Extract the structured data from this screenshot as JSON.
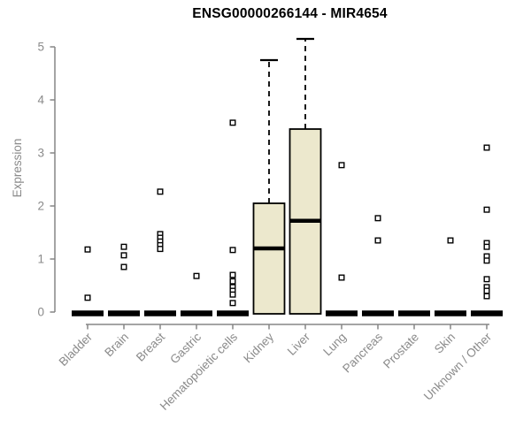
{
  "chart_data": {
    "type": "boxplot",
    "title": "ENSG00000266144 - MIR4654",
    "ylabel": "Expression",
    "xlabel": "",
    "ylim": [
      0,
      5
    ],
    "yticks": [
      0,
      1,
      2,
      3,
      4,
      5
    ],
    "grid": false,
    "legend": "none",
    "categories": [
      "Bladder",
      "Brain",
      "Breast",
      "Gastric",
      "Hematopoietic cells",
      "Kidney",
      "Liver",
      "Lung",
      "Pancreas",
      "Prostate",
      "Skin",
      "Unknown / Other"
    ],
    "boxes": [
      {
        "category": "Bladder",
        "q1": 0,
        "median": 0,
        "q3": 0,
        "whisker_low": 0,
        "whisker_high": 0,
        "outliers": [
          1.18,
          0.27
        ]
      },
      {
        "category": "Brain",
        "q1": 0,
        "median": 0,
        "q3": 0,
        "whisker_low": 0,
        "whisker_high": 0,
        "outliers": [
          1.23,
          1.07,
          0.85
        ]
      },
      {
        "category": "Breast",
        "q1": 0,
        "median": 0,
        "q3": 0,
        "whisker_low": 0,
        "whisker_high": 0,
        "outliers": [
          2.27,
          1.47,
          1.4,
          1.33,
          1.26,
          1.19
        ]
      },
      {
        "category": "Gastric",
        "q1": 0,
        "median": 0,
        "q3": 0,
        "whisker_low": 0,
        "whisker_high": 0,
        "outliers": [
          0.68
        ]
      },
      {
        "category": "Hematopoietic cells",
        "q1": 0,
        "median": 0,
        "q3": 0,
        "whisker_low": 0,
        "whisker_high": 0,
        "outliers": [
          3.57,
          1.17,
          0.7,
          0.58,
          0.47,
          0.4,
          0.33,
          0.17
        ]
      },
      {
        "category": "Kidney",
        "q1": 0,
        "median": 1.2,
        "q3": 2.05,
        "whisker_low": 0,
        "whisker_high": 4.75,
        "outliers": []
      },
      {
        "category": "Liver",
        "q1": 0,
        "median": 1.72,
        "q3": 3.45,
        "whisker_low": 0,
        "whisker_high": 5.15,
        "outliers": []
      },
      {
        "category": "Lung",
        "q1": 0,
        "median": 0,
        "q3": 0,
        "whisker_low": 0,
        "whisker_high": 0,
        "outliers": [
          2.77,
          0.65
        ]
      },
      {
        "category": "Pancreas",
        "q1": 0,
        "median": 0,
        "q3": 0,
        "whisker_low": 0,
        "whisker_high": 0,
        "outliers": [
          1.77,
          1.35
        ]
      },
      {
        "category": "Prostate",
        "q1": 0,
        "median": 0,
        "q3": 0,
        "whisker_low": 0,
        "whisker_high": 0,
        "outliers": []
      },
      {
        "category": "Skin",
        "q1": 0,
        "median": 0,
        "q3": 0,
        "whisker_low": 0,
        "whisker_high": 0,
        "outliers": [
          1.35
        ]
      },
      {
        "category": "Unknown / Other",
        "q1": 0,
        "median": 0,
        "q3": 0,
        "whisker_low": 0,
        "whisker_high": 0,
        "outliers": [
          3.1,
          1.93,
          1.3,
          1.23,
          1.05,
          0.97,
          0.62,
          0.47,
          0.4,
          0.3
        ]
      }
    ],
    "colors": {
      "box_fill": "#ece8cd",
      "box_border": "#000000",
      "median": "#000000",
      "outlier_fill": "#ffffff",
      "axis": "#858585",
      "tick_text": "#8a8a8a",
      "title_text": "#000000"
    }
  }
}
